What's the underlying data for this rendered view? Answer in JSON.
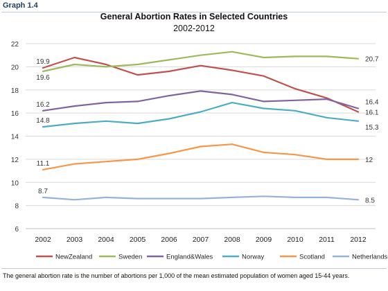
{
  "graph_label": "Graph 1.4",
  "caption": "The general abortion rate is the number of abortions per 1,000 of the mean estimated population of women aged 15-44 years.",
  "colors": {
    "NewZealand": "#c0504d",
    "Sweden": "#9bbb59",
    "England&Wales": "#8064a2",
    "Norway": "#4bacc6",
    "Scotland": "#f79646",
    "Netherlands": "#95b3d7",
    "grid": "#d9d9d9",
    "frame": "#bfcbd6"
  },
  "chart_data": {
    "type": "line",
    "title": "General Abortion Rates in Selected Countries",
    "subtitle": "2002-2012",
    "xlabel": "",
    "ylabel": "",
    "x": [
      "2002",
      "2003",
      "2004",
      "2005",
      "2006",
      "2007",
      "2008",
      "2009",
      "2010",
      "2011",
      "2012"
    ],
    "ylim": [
      6,
      22
    ],
    "yticks": [
      "6",
      "8",
      "10",
      "12",
      "14",
      "16",
      "18",
      "20",
      "22"
    ],
    "grid": "horizontal",
    "legend_position": "bottom",
    "series": [
      {
        "name": "NewZealand",
        "color_key": "NewZealand",
        "values": [
          19.9,
          20.8,
          20.2,
          19.3,
          19.6,
          20.1,
          19.7,
          19.2,
          18.1,
          17.3,
          16.1
        ]
      },
      {
        "name": "Sweden",
        "color_key": "Sweden",
        "values": [
          19.6,
          20.2,
          20.0,
          20.2,
          20.6,
          21.0,
          21.3,
          20.8,
          20.9,
          20.9,
          20.7
        ]
      },
      {
        "name": "England&Wales",
        "color_key": "England&Wales",
        "values": [
          16.2,
          16.6,
          16.9,
          17.0,
          17.5,
          17.9,
          17.6,
          17.0,
          17.1,
          17.2,
          16.4
        ]
      },
      {
        "name": "Norway",
        "color_key": "Norway",
        "values": [
          14.8,
          15.1,
          15.3,
          15.1,
          15.5,
          16.1,
          16.9,
          16.4,
          16.2,
          15.6,
          15.3
        ]
      },
      {
        "name": "Scotland",
        "color_key": "Scotland",
        "values": [
          11.1,
          11.6,
          11.8,
          12.0,
          12.5,
          13.1,
          13.3,
          12.6,
          12.4,
          12.0,
          12.0
        ]
      },
      {
        "name": "Netherlands",
        "color_key": "Netherlands",
        "values": [
          8.7,
          8.5,
          8.7,
          8.6,
          8.6,
          8.6,
          8.7,
          8.8,
          8.7,
          8.7,
          8.5
        ]
      }
    ],
    "data_labels": [
      {
        "series": "NewZealand",
        "index": 0,
        "text": "19.9",
        "side": "above"
      },
      {
        "series": "Sweden",
        "index": 0,
        "text": "19.6",
        "side": "below"
      },
      {
        "series": "England&Wales",
        "index": 0,
        "text": "16.2",
        "side": "above"
      },
      {
        "series": "Norway",
        "index": 0,
        "text": "14.8",
        "side": "above"
      },
      {
        "series": "Scotland",
        "index": 0,
        "text": "11.1",
        "side": "above"
      },
      {
        "series": "Netherlands",
        "index": 0,
        "text": "8.7",
        "side": "above"
      },
      {
        "series": "Sweden",
        "index": 10,
        "text": "20.7",
        "side": "right"
      },
      {
        "series": "England&Wales",
        "index": 10,
        "text": "16.4",
        "side": "right-above"
      },
      {
        "series": "NewZealand",
        "index": 10,
        "text": "16.1",
        "side": "right"
      },
      {
        "series": "Norway",
        "index": 10,
        "text": "15.3",
        "side": "right-below"
      },
      {
        "series": "Scotland",
        "index": 10,
        "text": "12",
        "side": "right"
      },
      {
        "series": "Netherlands",
        "index": 10,
        "text": "8.5",
        "side": "right"
      }
    ]
  }
}
